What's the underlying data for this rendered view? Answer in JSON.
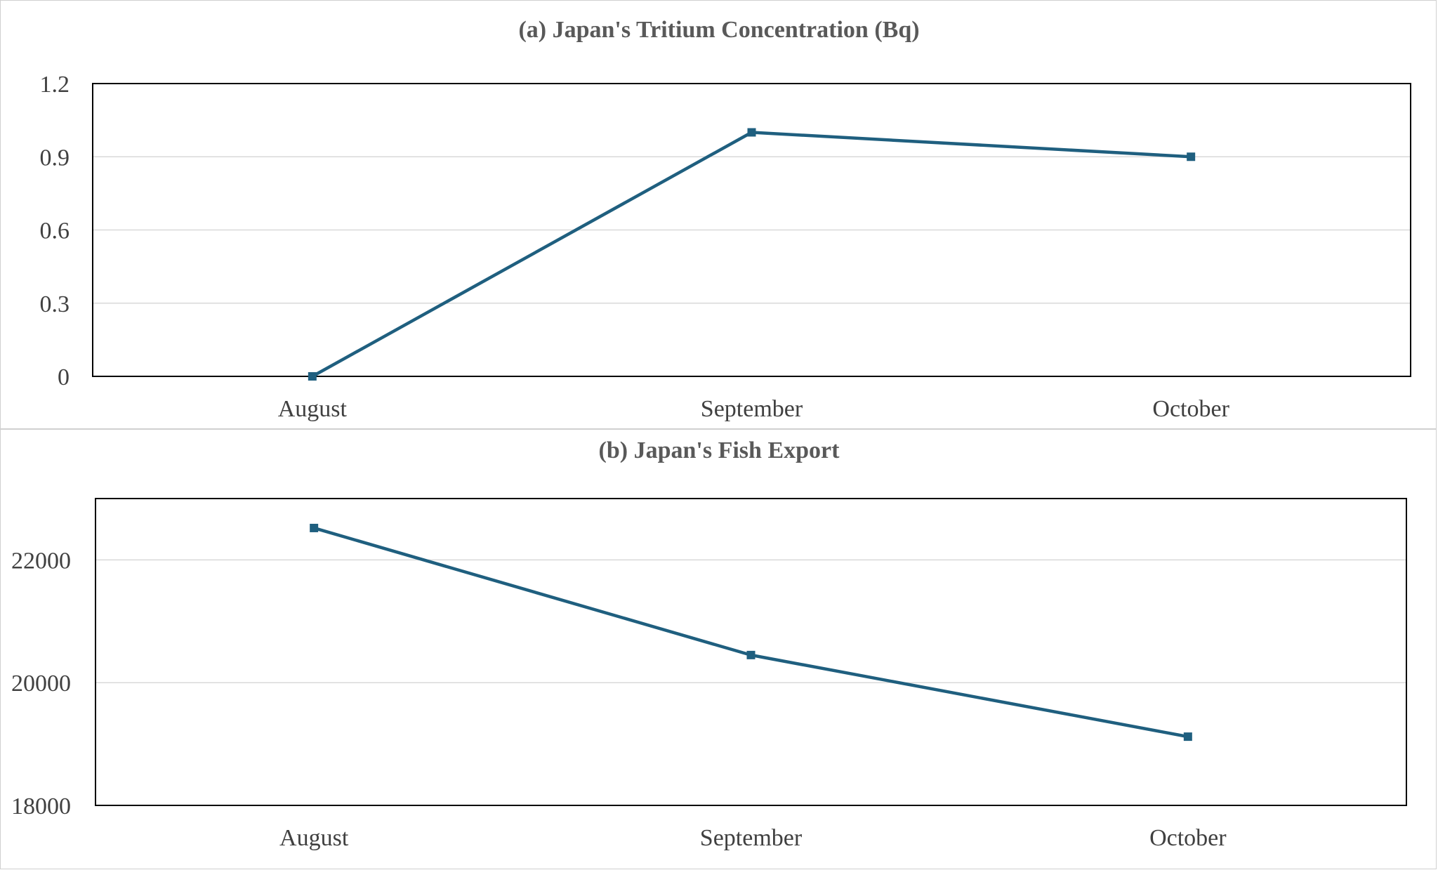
{
  "chart_data": [
    {
      "type": "line",
      "title": "(a) Japan's  Tritium Concentration (Bq)",
      "categories": [
        "August",
        "September",
        "October"
      ],
      "series": [
        {
          "values": [
            0,
            1.0,
            0.9
          ],
          "color": "#1f5f7f"
        }
      ],
      "ylim": [
        0,
        1.2
      ],
      "yticks": [
        0,
        0.3,
        0.6,
        0.9,
        1.2
      ],
      "ytick_labels": [
        "0",
        "0.3",
        "0.6",
        "0.9",
        "1.2"
      ],
      "grid": true,
      "legend": "none"
    },
    {
      "type": "line",
      "title": "(b) Japan's Fish Export",
      "categories": [
        "August",
        "September",
        "October"
      ],
      "series": [
        {
          "values": [
            22520,
            20450,
            19120
          ],
          "color": "#1f5f7f"
        }
      ],
      "ylim": [
        18000,
        23000
      ],
      "yticks": [
        18000,
        20000,
        22000
      ],
      "ytick_labels": [
        "18000",
        "20000",
        "22000"
      ],
      "grid": true,
      "legend": "none"
    }
  ]
}
